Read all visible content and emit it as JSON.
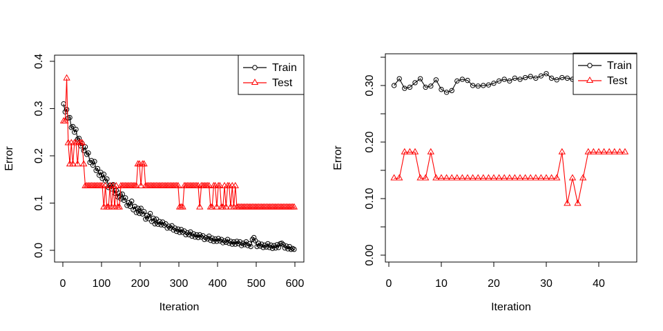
{
  "figure": {
    "background": "#ffffff",
    "frame_color": "#000000"
  },
  "chart_data": [
    {
      "type": "line",
      "title": "",
      "xlabel": "Iteration",
      "ylabel": "Error",
      "xlim": [
        -21.4,
        623.2
      ],
      "ylim": [
        -0.0248,
        0.413
      ],
      "grid": false,
      "xticks": {
        "values": [
          0,
          100,
          200,
          300,
          400,
          500,
          600
        ],
        "labels": [
          "0",
          "100",
          "200",
          "300",
          "400",
          "500",
          "600"
        ]
      },
      "yticks": {
        "values": [
          0.0,
          0.1,
          0.2,
          0.3,
          0.4
        ],
        "labels": [
          "0.0",
          "0.1",
          "0.2",
          "0.3",
          "0.4"
        ]
      },
      "legend": {
        "position": "topright",
        "entries": [
          {
            "label": "Train",
            "color": "#000000",
            "marker": "circle"
          },
          {
            "label": "Test",
            "color": "#ff0000",
            "marker": "triangle"
          }
        ]
      },
      "series": [
        {
          "name": "Train",
          "color": "#000000",
          "marker": "circle",
          "x": [
            2,
            6,
            10,
            14,
            18,
            22,
            26,
            30,
            34,
            38,
            42,
            46,
            50,
            54,
            58,
            62,
            66,
            70,
            74,
            78,
            82,
            86,
            90,
            94,
            98,
            102,
            106,
            110,
            114,
            118,
            122,
            126,
            130,
            134,
            138,
            142,
            146,
            150,
            154,
            158,
            162,
            166,
            170,
            174,
            178,
            182,
            186,
            190,
            194,
            198,
            202,
            206,
            210,
            214,
            218,
            222,
            226,
            230,
            234,
            238,
            242,
            246,
            250,
            254,
            258,
            262,
            266,
            270,
            274,
            278,
            282,
            286,
            290,
            294,
            298,
            302,
            306,
            310,
            314,
            318,
            322,
            326,
            330,
            334,
            338,
            342,
            346,
            350,
            354,
            358,
            362,
            366,
            370,
            374,
            378,
            382,
            386,
            390,
            394,
            398,
            402,
            406,
            410,
            414,
            418,
            422,
            426,
            430,
            434,
            438,
            442,
            446,
            450,
            454,
            458,
            462,
            466,
            470,
            474,
            478,
            482,
            486,
            490,
            494,
            498,
            502,
            506,
            510,
            514,
            518,
            522,
            526,
            530,
            534,
            538,
            542,
            546,
            550,
            554,
            558,
            562,
            566,
            570,
            574,
            578,
            582,
            586,
            590,
            594,
            598
          ],
          "y": [
            0.31,
            0.293,
            0.298,
            0.28,
            0.281,
            0.26,
            0.262,
            0.25,
            0.256,
            0.235,
            0.237,
            0.221,
            0.226,
            0.211,
            0.219,
            0.203,
            0.206,
            0.186,
            0.19,
            0.18,
            0.188,
            0.169,
            0.173,
            0.159,
            0.165,
            0.152,
            0.161,
            0.147,
            0.151,
            0.133,
            0.138,
            0.13,
            0.139,
            0.121,
            0.127,
            0.113,
            0.121,
            0.109,
            0.119,
            0.106,
            0.111,
            0.095,
            0.101,
            0.093,
            0.104,
            0.086,
            0.093,
            0.08,
            0.089,
            0.078,
            0.089,
            0.077,
            0.082,
            0.066,
            0.074,
            0.067,
            0.078,
            0.061,
            0.068,
            0.056,
            0.066,
            0.055,
            0.061,
            0.054,
            0.06,
            0.053,
            0.056,
            0.047,
            0.051,
            0.047,
            0.052,
            0.043,
            0.047,
            0.04,
            0.045,
            0.038,
            0.044,
            0.038,
            0.041,
            0.033,
            0.037,
            0.033,
            0.039,
            0.03,
            0.035,
            0.028,
            0.033,
            0.027,
            0.033,
            0.028,
            0.031,
            0.023,
            0.027,
            0.024,
            0.03,
            0.021,
            0.026,
            0.019,
            0.024,
            0.019,
            0.025,
            0.02,
            0.023,
            0.016,
            0.02,
            0.017,
            0.023,
            0.015,
            0.019,
            0.013,
            0.018,
            0.013,
            0.019,
            0.014,
            0.018,
            0.01,
            0.015,
            0.012,
            0.018,
            0.01,
            0.014,
            0.008,
            0.023,
            0.027,
            0.02,
            0.008,
            0.015,
            0.009,
            0.013,
            0.006,
            0.011,
            0.007,
            0.014,
            0.006,
            0.011,
            0.004,
            0.01,
            0.005,
            0.012,
            0.006,
            0.014,
            0.015,
            0.012,
            0.005,
            0.009,
            0.003,
            0.008,
            0.002,
            0.004,
            0.002
          ]
        },
        {
          "name": "Test",
          "color": "#ff0000",
          "marker": "triangle",
          "x": [
            2,
            6,
            10,
            14,
            18,
            22,
            26,
            30,
            34,
            38,
            42,
            46,
            50,
            54,
            58,
            62,
            66,
            70,
            74,
            78,
            82,
            86,
            90,
            94,
            98,
            102,
            106,
            110,
            114,
            118,
            122,
            126,
            130,
            134,
            138,
            142,
            146,
            150,
            154,
            158,
            162,
            166,
            170,
            174,
            178,
            182,
            186,
            190,
            194,
            198,
            202,
            206,
            210,
            214,
            218,
            222,
            226,
            230,
            234,
            238,
            242,
            246,
            250,
            254,
            258,
            262,
            266,
            270,
            274,
            278,
            282,
            286,
            290,
            294,
            298,
            302,
            306,
            310,
            314,
            318,
            322,
            326,
            330,
            334,
            338,
            342,
            346,
            350,
            354,
            358,
            362,
            366,
            370,
            374,
            378,
            382,
            386,
            390,
            394,
            398,
            402,
            406,
            410,
            414,
            418,
            422,
            426,
            430,
            434,
            438,
            442,
            446,
            450,
            454,
            458,
            462,
            466,
            470,
            474,
            478,
            482,
            486,
            490,
            494,
            498,
            502,
            506,
            510,
            514,
            518,
            522,
            526,
            530,
            534,
            538,
            542,
            546,
            550,
            554,
            558,
            562,
            566,
            570,
            574,
            578,
            582,
            586,
            590,
            594,
            598
          ],
          "y": [
            0.273,
            0.273,
            0.364,
            0.227,
            0.182,
            0.227,
            0.182,
            0.227,
            0.227,
            0.182,
            0.227,
            0.227,
            0.227,
            0.182,
            0.136,
            0.136,
            0.136,
            0.136,
            0.136,
            0.136,
            0.136,
            0.136,
            0.136,
            0.136,
            0.136,
            0.136,
            0.091,
            0.136,
            0.091,
            0.091,
            0.136,
            0.091,
            0.136,
            0.091,
            0.136,
            0.091,
            0.091,
            0.136,
            0.136,
            0.136,
            0.136,
            0.136,
            0.136,
            0.136,
            0.136,
            0.136,
            0.136,
            0.136,
            0.182,
            0.182,
            0.136,
            0.182,
            0.182,
            0.136,
            0.136,
            0.136,
            0.136,
            0.136,
            0.136,
            0.136,
            0.136,
            0.136,
            0.136,
            0.136,
            0.136,
            0.136,
            0.136,
            0.136,
            0.136,
            0.136,
            0.136,
            0.136,
            0.136,
            0.136,
            0.136,
            0.091,
            0.091,
            0.091,
            0.136,
            0.136,
            0.136,
            0.136,
            0.136,
            0.136,
            0.136,
            0.136,
            0.136,
            0.136,
            0.091,
            0.136,
            0.136,
            0.136,
            0.136,
            0.136,
            0.136,
            0.091,
            0.091,
            0.136,
            0.136,
            0.091,
            0.136,
            0.136,
            0.091,
            0.091,
            0.136,
            0.091,
            0.136,
            0.136,
            0.091,
            0.136,
            0.091,
            0.136,
            0.091,
            0.091,
            0.091,
            0.091,
            0.091,
            0.091,
            0.091,
            0.091,
            0.091,
            0.091,
            0.091,
            0.091,
            0.091,
            0.091,
            0.091,
            0.091,
            0.091,
            0.091,
            0.091,
            0.091,
            0.091,
            0.091,
            0.091,
            0.091,
            0.091,
            0.091,
            0.091,
            0.091,
            0.091,
            0.091,
            0.091,
            0.091,
            0.091,
            0.091,
            0.091,
            0.091,
            0.091,
            0.091
          ]
        }
      ]
    },
    {
      "type": "line",
      "title": "",
      "xlabel": "Iteration",
      "ylabel": "Error",
      "xlim": [
        -0.66,
        47.24
      ],
      "ylim": [
        -0.0122,
        0.3561
      ],
      "grid": false,
      "xticks": {
        "values": [
          0,
          10,
          20,
          30,
          40
        ],
        "labels": [
          "0",
          "10",
          "20",
          "30",
          "40"
        ]
      },
      "yticks": {
        "values": [
          0.0,
          0.05,
          0.1,
          0.15,
          0.2,
          0.25,
          0.3,
          0.35
        ],
        "labels": [
          "0.00",
          "",
          "0.10",
          "",
          "0.20",
          "",
          "0.30",
          ""
        ]
      },
      "legend": {
        "position": "topright",
        "entries": [
          {
            "label": "Train",
            "color": "#000000",
            "marker": "circle"
          },
          {
            "label": "Test",
            "color": "#ff0000",
            "marker": "triangle"
          }
        ]
      },
      "series": [
        {
          "name": "Train",
          "color": "#000000",
          "marker": "circle",
          "x": [
            1,
            2,
            3,
            4,
            5,
            6,
            7,
            8,
            9,
            10,
            11,
            12,
            13,
            14,
            15,
            16,
            17,
            18,
            19,
            20,
            21,
            22,
            23,
            24,
            25,
            26,
            27,
            28,
            29,
            30,
            31,
            32,
            33,
            34,
            35,
            36,
            37,
            38,
            39,
            40,
            41,
            42,
            43,
            44,
            45
          ],
          "y": [
            0.3,
            0.312,
            0.295,
            0.297,
            0.305,
            0.312,
            0.297,
            0.299,
            0.31,
            0.293,
            0.288,
            0.291,
            0.308,
            0.311,
            0.309,
            0.3,
            0.299,
            0.3,
            0.301,
            0.304,
            0.308,
            0.311,
            0.308,
            0.313,
            0.311,
            0.314,
            0.316,
            0.313,
            0.317,
            0.321,
            0.313,
            0.31,
            0.314,
            0.313,
            0.311,
            0.306,
            0.311,
            0.314,
            0.311,
            0.314,
            0.314,
            0.311,
            0.312,
            0.313,
            0.312
          ]
        },
        {
          "name": "Test",
          "color": "#ff0000",
          "marker": "triangle",
          "x": [
            1,
            2,
            3,
            4,
            5,
            6,
            7,
            8,
            9,
            10,
            11,
            12,
            13,
            14,
            15,
            16,
            17,
            18,
            19,
            20,
            21,
            22,
            23,
            24,
            25,
            26,
            27,
            28,
            29,
            30,
            31,
            32,
            33,
            34,
            35,
            36,
            37,
            38,
            39,
            40,
            41,
            42,
            43,
            44,
            45
          ],
          "y": [
            0.136,
            0.136,
            0.182,
            0.182,
            0.182,
            0.136,
            0.136,
            0.182,
            0.136,
            0.136,
            0.136,
            0.136,
            0.136,
            0.136,
            0.136,
            0.136,
            0.136,
            0.136,
            0.136,
            0.136,
            0.136,
            0.136,
            0.136,
            0.136,
            0.136,
            0.136,
            0.136,
            0.136,
            0.136,
            0.136,
            0.136,
            0.136,
            0.182,
            0.091,
            0.136,
            0.091,
            0.136,
            0.182,
            0.182,
            0.182,
            0.182,
            0.182,
            0.182,
            0.182,
            0.182
          ]
        }
      ]
    }
  ]
}
